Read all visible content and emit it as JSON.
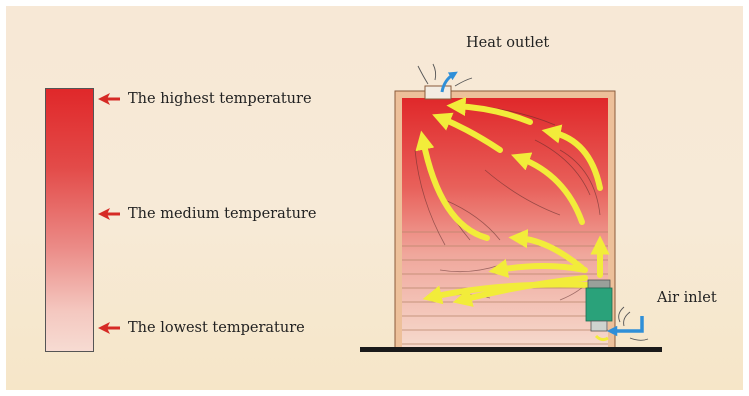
{
  "diagram": {
    "labels": {
      "heat_outlet": "Heat outlet",
      "air_inlet": "Air inlet"
    },
    "legend": [
      {
        "label": "The highest temperature"
      },
      {
        "label": "The medium temperature"
      },
      {
        "label": "The lowest temperature"
      }
    ],
    "colors": {
      "hot": "#e0282a",
      "cool": "#f7dbd2",
      "airflow": "#f2ec3a",
      "outflow": "#2f8fd8",
      "heater": "#2aa27a",
      "floor": "#1a1a1a",
      "wood": "#e9b78f",
      "marker": "#d62a25"
    },
    "icons": [
      "arrow-left-icon",
      "heater-icon",
      "wind-icon"
    ]
  }
}
